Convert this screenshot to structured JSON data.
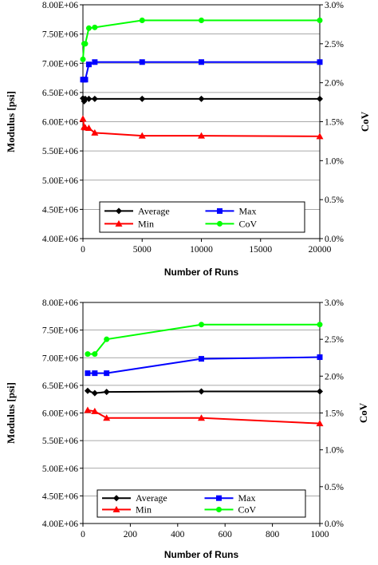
{
  "chart_data": [
    {
      "type": "line",
      "x": [
        0,
        100,
        200,
        500,
        1000,
        5000,
        10000,
        20000
      ],
      "series": [
        {
          "name": "Average",
          "color": "#000000",
          "marker": "diamond",
          "axis": "left",
          "values": [
            6400000,
            6350000,
            6390000,
            6390000,
            6390000,
            6390000,
            6390000,
            6390000
          ]
        },
        {
          "name": "Max",
          "color": "#0000ff",
          "marker": "square",
          "axis": "left",
          "values": [
            6720000,
            6720000,
            6720000,
            6980000,
            7020000,
            7020000,
            7020000,
            7020000
          ]
        },
        {
          "name": "Min",
          "color": "#ff0000",
          "marker": "triangle",
          "axis": "left",
          "values": [
            6050000,
            5910000,
            5900000,
            5890000,
            5810000,
            5760000,
            5760000,
            5750000
          ]
        },
        {
          "name": "CoV",
          "color": "#00ff00",
          "marker": "circle",
          "axis": "right",
          "values": [
            0.023,
            0.025,
            0.025,
            0.027,
            0.0271,
            0.028,
            0.028,
            0.028
          ]
        }
      ],
      "xlabel": "Number of Runs",
      "ylabel": "Modulus [psi]",
      "y2label": "CoV",
      "xlim": [
        0,
        20000
      ],
      "ylim": [
        4000000,
        8000000
      ],
      "y2lim": [
        0,
        0.03
      ],
      "xticks": [
        "0",
        "5000",
        "10000",
        "15000",
        "20000"
      ],
      "yticks": [
        "4.00E+06",
        "4.50E+06",
        "5.00E+06",
        "5.50E+06",
        "6.00E+06",
        "6.50E+06",
        "7.00E+06",
        "7.50E+06",
        "8.00E+06"
      ],
      "y2ticks": [
        "0.0%",
        "0.5%",
        "1.0%",
        "1.5%",
        "2.0%",
        "2.5%",
        "3.0%"
      ],
      "grid": true,
      "legend_position": "bottom"
    },
    {
      "type": "line",
      "x": [
        20,
        50,
        100,
        500,
        1000
      ],
      "series": [
        {
          "name": "Average",
          "color": "#000000",
          "marker": "diamond",
          "axis": "left",
          "values": [
            6400000,
            6360000,
            6380000,
            6390000,
            6390000
          ]
        },
        {
          "name": "Max",
          "color": "#0000ff",
          "marker": "square",
          "axis": "left",
          "values": [
            6720000,
            6720000,
            6720000,
            6980000,
            7010000
          ]
        },
        {
          "name": "Min",
          "color": "#ff0000",
          "marker": "triangle",
          "axis": "left",
          "values": [
            6050000,
            6030000,
            5910000,
            5910000,
            5810000
          ]
        },
        {
          "name": "CoV",
          "color": "#00ff00",
          "marker": "circle",
          "axis": "right",
          "values": [
            0.023,
            0.023,
            0.025,
            0.027,
            0.027
          ]
        }
      ],
      "xlabel": "Number of Runs",
      "ylabel": "Modulus [psi]",
      "y2label": "CoV",
      "xlim": [
        0,
        1000
      ],
      "ylim": [
        4000000,
        8000000
      ],
      "y2lim": [
        0,
        0.03
      ],
      "xticks": [
        "0",
        "200",
        "400",
        "600",
        "800",
        "1000"
      ],
      "yticks": [
        "4.00E+06",
        "4.50E+06",
        "5.00E+06",
        "5.50E+06",
        "6.00E+06",
        "6.50E+06",
        "7.00E+06",
        "7.50E+06",
        "8.00E+06"
      ],
      "y2ticks": [
        "0.0%",
        "0.5%",
        "1.0%",
        "1.5%",
        "2.0%",
        "2.5%",
        "3.0%"
      ],
      "grid": true,
      "legend_position": "bottom"
    }
  ]
}
